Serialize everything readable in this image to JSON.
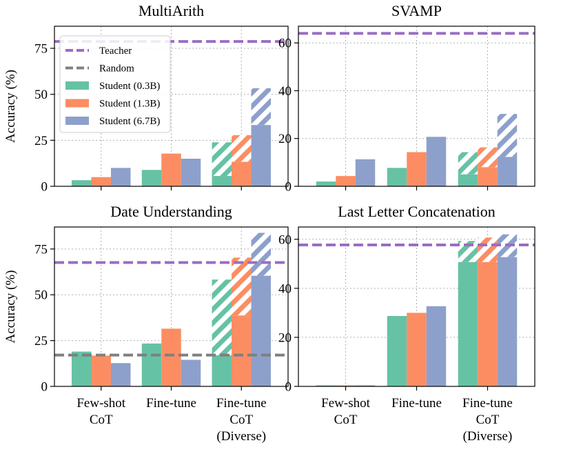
{
  "chart_data": [
    {
      "type": "bar",
      "title": "MultiArith",
      "ylabel": "Accuracy (%)",
      "xlabel": "",
      "ylim": [
        0,
        87
      ],
      "yticks": [
        0,
        25,
        50,
        75
      ],
      "ytick_labels": [
        "0",
        "25",
        "50",
        "75"
      ],
      "teacher": 78.7,
      "random": null,
      "categories": [
        "Few-shot CoT",
        "Fine-tune",
        "Fine-tune CoT (Diverse)"
      ],
      "series": [
        {
          "name": "Student (0.3B)",
          "values": [
            3.3,
            8.9,
            5.6
          ],
          "diverse_top": [
            null,
            null,
            23.9
          ]
        },
        {
          "name": "Student (1.3B)",
          "values": [
            5.0,
            17.8,
            13.3
          ],
          "diverse_top": [
            null,
            null,
            27.8
          ]
        },
        {
          "name": "Student (6.7B)",
          "values": [
            10.0,
            15.0,
            33.3
          ],
          "diverse_top": [
            null,
            null,
            53.3
          ]
        }
      ]
    },
    {
      "type": "bar",
      "title": "SVAMP",
      "ylabel": "",
      "xlabel": "",
      "ylim": [
        0,
        67
      ],
      "yticks": [
        0,
        20,
        40,
        60
      ],
      "ytick_labels": [
        "0",
        "20",
        "40",
        "60"
      ],
      "teacher": 64.0,
      "random": null,
      "categories": [
        "Few-shot CoT",
        "Fine-tune",
        "Fine-tune CoT (Diverse)"
      ],
      "series": [
        {
          "name": "Student (0.3B)",
          "values": [
            2.0,
            7.7,
            5.0
          ],
          "diverse_top": [
            null,
            null,
            14.3
          ]
        },
        {
          "name": "Student (1.3B)",
          "values": [
            4.3,
            14.3,
            8.0
          ],
          "diverse_top": [
            null,
            null,
            16.3
          ]
        },
        {
          "name": "Student (6.7B)",
          "values": [
            11.3,
            20.7,
            12.3
          ],
          "diverse_top": [
            null,
            null,
            30.3
          ]
        }
      ]
    },
    {
      "type": "bar",
      "title": "Date Understanding",
      "ylabel": "Accuracy (%)",
      "xlabel": "",
      "ylim": [
        0,
        87
      ],
      "yticks": [
        0,
        25,
        50,
        75
      ],
      "ytick_labels": [
        "0",
        "25",
        "50",
        "75"
      ],
      "teacher": 67.6,
      "random": 17.1,
      "categories": [
        "Few-shot CoT",
        "Fine-tune",
        "Fine-tune CoT (Diverse)"
      ],
      "series": [
        {
          "name": "Student (0.3B)",
          "values": [
            19.0,
            23.4,
            17.0
          ],
          "diverse_top": [
            null,
            null,
            58.3
          ]
        },
        {
          "name": "Student (1.3B)",
          "values": [
            16.8,
            31.5,
            38.7
          ],
          "diverse_top": [
            null,
            null,
            70.3
          ]
        },
        {
          "name": "Student (6.7B)",
          "values": [
            12.7,
            14.5,
            60.4
          ],
          "diverse_top": [
            null,
            null,
            83.8
          ]
        }
      ]
    },
    {
      "type": "bar",
      "title": "Last Letter Concatenation",
      "ylabel": "",
      "xlabel": "",
      "ylim": [
        0,
        65
      ],
      "yticks": [
        0,
        20,
        40,
        60
      ],
      "ytick_labels": [
        "0",
        "20",
        "40",
        "60"
      ],
      "teacher": 57.7,
      "random": null,
      "categories": [
        "Few-shot CoT",
        "Fine-tune",
        "Fine-tune CoT (Diverse)"
      ],
      "series": [
        {
          "name": "Student (0.3B)",
          "values": [
            0.0,
            28.7,
            50.7
          ],
          "diverse_top": [
            null,
            null,
            59.3
          ]
        },
        {
          "name": "Student (1.3B)",
          "values": [
            0.0,
            30.0,
            50.7
          ],
          "diverse_top": [
            null,
            null,
            60.7
          ]
        },
        {
          "name": "Student (6.7B)",
          "values": [
            0.0,
            32.7,
            52.7
          ],
          "diverse_top": [
            null,
            null,
            62.0
          ]
        }
      ]
    }
  ],
  "xtick_labels": [
    [
      "Few-shot",
      "CoT"
    ],
    [
      "Fine-tune"
    ],
    [
      "Fine-tune",
      "CoT",
      "(Diverse)"
    ]
  ],
  "legend": {
    "location": "upper-left of first panel",
    "entries": [
      {
        "label": "Teacher",
        "kind": "dashed-line",
        "color": "#9a6dc4"
      },
      {
        "label": "Random",
        "kind": "dashed-line",
        "color": "#7f7f7f"
      },
      {
        "label": "Student (0.3B)",
        "kind": "patch",
        "color": "#66c2a5"
      },
      {
        "label": "Student (1.3B)",
        "kind": "patch",
        "color": "#fc8d62"
      },
      {
        "label": "Student (6.7B)",
        "kind": "patch",
        "color": "#8da0cb"
      }
    ]
  },
  "colors": {
    "teacher": "#9a6dc4",
    "random": "#7f7f7f",
    "series": [
      "#66c2a5",
      "#fc8d62",
      "#8da0cb"
    ],
    "grid": "#b0b0b0"
  }
}
